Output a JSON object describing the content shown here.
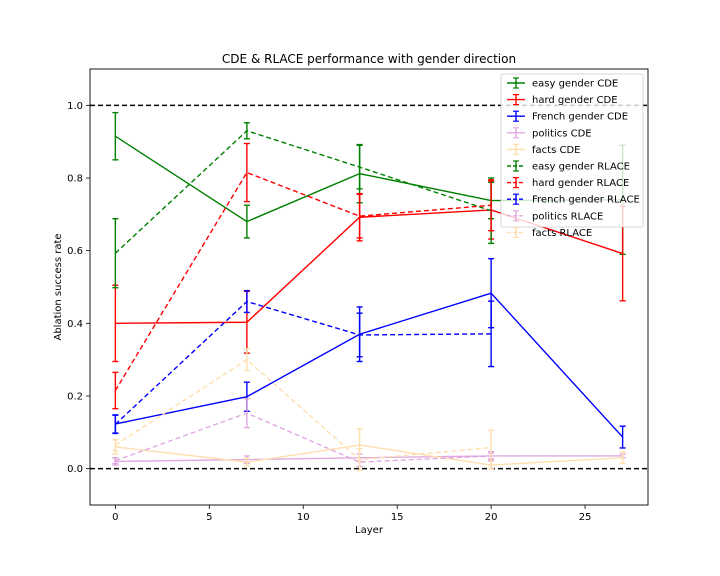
{
  "chart_data": {
    "type": "line",
    "title": "CDE & RLACE performance with gender direction",
    "xlabel": "Layer",
    "ylabel": "Ablation success rate",
    "xlim": [
      -1.35,
      28.35
    ],
    "ylim": [
      -0.1,
      1.1
    ],
    "xticks": [
      0,
      5,
      10,
      15,
      20,
      25
    ],
    "yticks": [
      0.0,
      0.2,
      0.4,
      0.6,
      0.8,
      1.0
    ],
    "x": [
      0,
      7,
      13,
      20,
      27
    ],
    "reference_lines": [
      0.0,
      1.0
    ],
    "legend_position": "upper-right",
    "series": [
      {
        "name": "easy gender CDE",
        "color": "#008000",
        "style": "solid",
        "opacity": 1.0,
        "x": [
          0,
          7,
          13,
          20,
          27
        ],
        "values": [
          0.915,
          0.68,
          0.812,
          0.738,
          0.74
        ],
        "err": [
          0.065,
          0.045,
          0.08,
          0.05,
          0.15
        ]
      },
      {
        "name": "hard gender CDE",
        "color": "#ff0000",
        "style": "solid",
        "opacity": 1.0,
        "x": [
          0,
          7,
          13,
          20,
          27
        ],
        "values": [
          0.4,
          0.403,
          0.692,
          0.712,
          0.592
        ],
        "err": [
          0.105,
          0.085,
          0.065,
          0.08,
          0.13
        ]
      },
      {
        "name": "French gender CDE",
        "color": "#0000ff",
        "style": "solid",
        "opacity": 1.0,
        "x": [
          0,
          7,
          13,
          20,
          27
        ],
        "values": [
          0.123,
          0.198,
          0.37,
          0.483,
          0.087
        ],
        "err": [
          0.025,
          0.04,
          0.075,
          0.095,
          0.03
        ]
      },
      {
        "name": "politics CDE",
        "color": "#dda0dd",
        "style": "solid",
        "opacity": 0.9,
        "x": [
          0,
          7,
          13,
          20,
          27
        ],
        "values": [
          0.02,
          0.025,
          0.03,
          0.035,
          0.035
        ],
        "err": [
          0.01,
          0.01,
          0.01,
          0.008,
          0.005
        ]
      },
      {
        "name": "facts CDE",
        "color": "#ffdead",
        "style": "solid",
        "opacity": 1.0,
        "x": [
          0,
          7,
          13,
          20,
          27
        ],
        "values": [
          0.06,
          0.018,
          0.065,
          0.01,
          0.03
        ],
        "err": [
          0.02,
          0.01,
          0.045,
          0.01,
          0.015
        ]
      },
      {
        "name": "easy gender RLACE",
        "color": "#008000",
        "style": "dashed",
        "opacity": 1.0,
        "x": [
          0,
          7,
          13,
          20
        ],
        "values": [
          0.593,
          0.93,
          0.83,
          0.71
        ],
        "err": [
          0.095,
          0.022,
          0.06,
          0.09
        ]
      },
      {
        "name": "hard gender RLACE",
        "color": "#ff0000",
        "style": "dashed",
        "opacity": 1.0,
        "x": [
          0,
          7,
          13,
          20
        ],
        "values": [
          0.215,
          0.815,
          0.695,
          0.725
        ],
        "err": [
          0.05,
          0.08,
          0.06,
          0.07
        ]
      },
      {
        "name": "French gender RLACE",
        "color": "#0000ff",
        "style": "dashed",
        "opacity": 1.0,
        "x": [
          0,
          7,
          13,
          20
        ],
        "values": [
          0.122,
          0.46,
          0.368,
          0.371
        ],
        "err": [
          0.025,
          0.03,
          0.06,
          0.09
        ]
      },
      {
        "name": "politics RLACE",
        "color": "#dda0dd",
        "style": "dashed",
        "opacity": 0.9,
        "x": [
          0,
          7,
          13,
          20
        ],
        "values": [
          0.022,
          0.153,
          0.018,
          0.035
        ],
        "err": [
          0.008,
          0.04,
          0.012,
          0.012
        ]
      },
      {
        "name": "facts RLACE",
        "color": "#ffdead",
        "style": "dashed",
        "opacity": 1.0,
        "x": [
          0,
          7,
          13,
          20
        ],
        "values": [
          0.065,
          0.3,
          0.025,
          0.058
        ],
        "err": [
          0.015,
          0.03,
          0.03,
          0.048
        ]
      }
    ]
  }
}
